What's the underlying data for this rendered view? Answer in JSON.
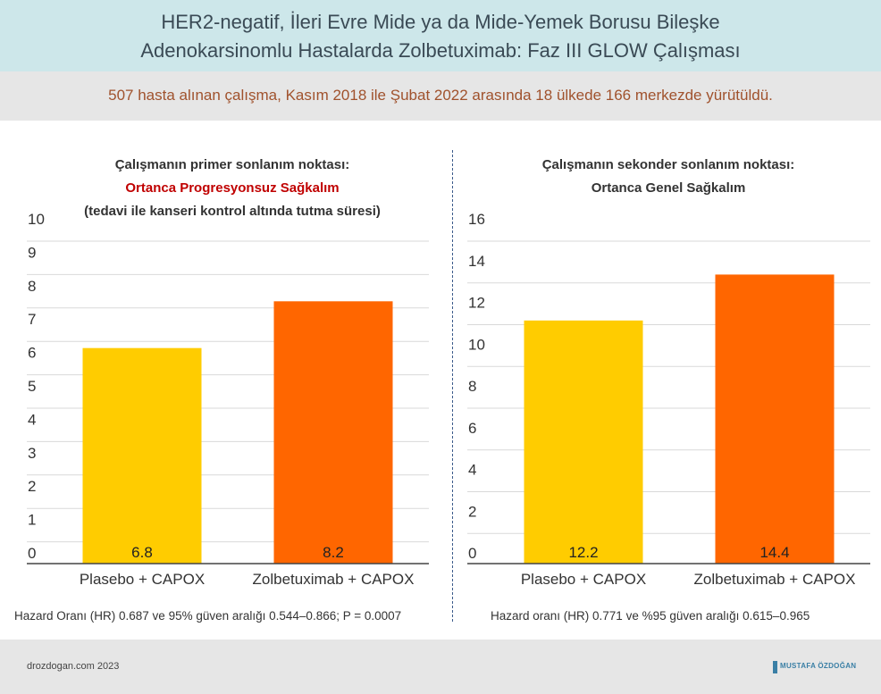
{
  "header": {
    "title_line1": "HER2-negatif, İleri Evre Mide ya da Mide-Yemek Borusu Bileşke",
    "title_line2": "Adenokarsinomlu Hastalarda Zolbetuximab: Faz III GLOW Çalışması"
  },
  "subheader": "507 hasta alınan çalışma, Kasım 2018 ile Şubat 2022 arasında 18 ülkede 166 merkezde yürütüldü.",
  "charts": {
    "left": {
      "title_line1": "Çalışmanın primer sonlanım noktası:",
      "title_line2": "Ortanca Progresyonsuz Sağkalım",
      "title_line3": "(tedavi ile kanseri kontrol altında tutma süresi)",
      "note": "Hazard Oranı (HR) 0.687 ve 95% güven aralığı 0.544–0.866; P = 0.0007"
    },
    "right": {
      "title_line1": "Çalışmanın sekonder sonlanım noktası:",
      "title_line2": "Ortanca Genel Sağkalım",
      "note": "Hazard oranı (HR) 0.771 ve %95 güven aralığı 0.615–0.965"
    }
  },
  "footer": {
    "site": "drozdogan.com 2023",
    "logo_text": "MUSTAFA ÖZDOĞAN"
  },
  "chart_data": [
    {
      "type": "bar",
      "title": "Ortanca Progresyonsuz Sağkalım",
      "categories": [
        "Plasebo + CAPOX",
        "Zolbetuximab + CAPOX"
      ],
      "values": [
        6.8,
        8.2
      ],
      "value_labels": [
        "6.8",
        "8.2"
      ],
      "colors": [
        "#FFCC00",
        "#FF6600"
      ],
      "ylim": [
        0,
        10
      ],
      "yticks": [
        0,
        1,
        2,
        3,
        4,
        5,
        6,
        7,
        8,
        9,
        10
      ],
      "grid": true
    },
    {
      "type": "bar",
      "title": "Ortanca Genel Sağkalım",
      "categories": [
        "Plasebo + CAPOX",
        "Zolbetuximab + CAPOX"
      ],
      "values": [
        12.2,
        14.4
      ],
      "value_labels": [
        "12.2",
        "14.4"
      ],
      "colors": [
        "#FFCC00",
        "#FF6600"
      ],
      "ylim": [
        0,
        16
      ],
      "yticks": [
        0,
        2,
        4,
        6,
        8,
        10,
        12,
        14,
        16
      ],
      "grid": true
    }
  ]
}
